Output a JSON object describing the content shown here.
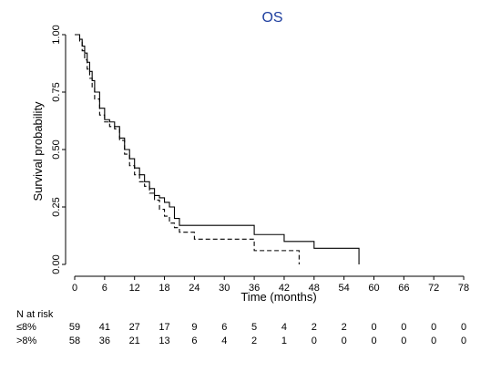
{
  "chart_data": {
    "type": "line",
    "chart_kind": "kaplan-meier step",
    "title": "OS",
    "xlabel": "Time (months)",
    "ylabel": "Survival probability",
    "xlim": [
      0,
      80
    ],
    "ylim": [
      0,
      1
    ],
    "x_ticks": [
      0,
      6,
      12,
      18,
      24,
      30,
      36,
      42,
      48,
      54,
      60,
      66,
      72,
      78
    ],
    "y_ticks": [
      0.0,
      0.25,
      0.5,
      0.75,
      1.0
    ],
    "y_tick_labels": [
      "0.00",
      "0.25",
      "0.50",
      "0.75",
      "1.00"
    ],
    "grid": false,
    "legend": "none",
    "series": [
      {
        "label": "≤8%",
        "line_style": "solid",
        "color": "#000000",
        "x": [
          0,
          1,
          1.5,
          2,
          2.5,
          3,
          3.5,
          4,
          5,
          6,
          7,
          8,
          9,
          10,
          11,
          12,
          13,
          14,
          15,
          16,
          17,
          18,
          19,
          20,
          21,
          22,
          36,
          42,
          48,
          57
        ],
        "y": [
          1.0,
          0.98,
          0.95,
          0.92,
          0.88,
          0.84,
          0.8,
          0.75,
          0.68,
          0.63,
          0.62,
          0.6,
          0.55,
          0.5,
          0.46,
          0.42,
          0.39,
          0.36,
          0.33,
          0.3,
          0.29,
          0.27,
          0.25,
          0.2,
          0.17,
          0.17,
          0.13,
          0.1,
          0.07,
          0.0
        ]
      },
      {
        "label": ">8%",
        "line_style": "dashed",
        "color": "#000000",
        "x": [
          0,
          1,
          1.5,
          2,
          2.5,
          3,
          3.5,
          4,
          5,
          6,
          7,
          8,
          9,
          10,
          11,
          12,
          13,
          14,
          15,
          16,
          17,
          18,
          19,
          20,
          21,
          24,
          36,
          45
        ],
        "y": [
          1.0,
          0.97,
          0.93,
          0.89,
          0.85,
          0.81,
          0.77,
          0.72,
          0.65,
          0.62,
          0.6,
          0.59,
          0.54,
          0.48,
          0.43,
          0.39,
          0.36,
          0.34,
          0.31,
          0.28,
          0.24,
          0.21,
          0.18,
          0.16,
          0.14,
          0.11,
          0.06,
          0.0
        ]
      }
    ],
    "risk_table": {
      "title": "N at risk",
      "times": [
        0,
        6,
        12,
        18,
        24,
        30,
        36,
        42,
        48,
        54,
        60,
        66,
        72,
        78
      ],
      "rows": [
        {
          "label": "≤8%",
          "values": [
            59,
            41,
            27,
            17,
            9,
            6,
            5,
            4,
            2,
            2,
            0,
            0,
            0,
            0
          ]
        },
        {
          "label": ">8%",
          "values": [
            58,
            36,
            21,
            13,
            6,
            4,
            2,
            1,
            0,
            0,
            0,
            0,
            0,
            0
          ]
        }
      ]
    }
  }
}
